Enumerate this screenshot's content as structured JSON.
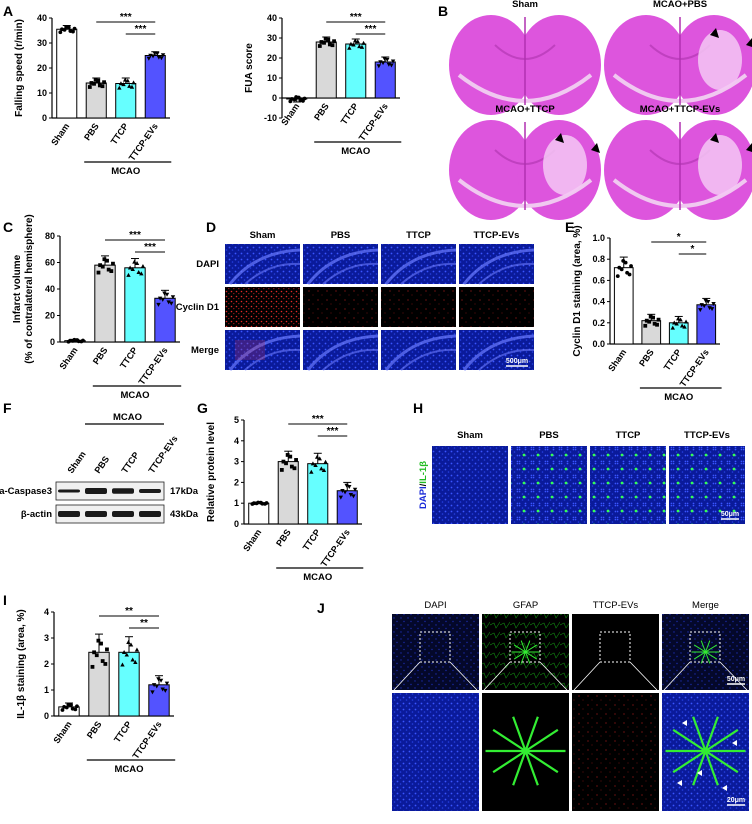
{
  "colors": {
    "sham": "#ffffff",
    "pbs": "#d9d9d9",
    "ttcp": "#66ffff",
    "ttcpev": "#5353ff",
    "stain": "#dd55dd",
    "dapi": "#2a3ad8",
    "green": "#22dd22",
    "red": "#cc2222"
  },
  "panels": {
    "A": {
      "label": "A",
      "chart1": {
        "ylabel": "Falling speed (r/min)",
        "yticks": [
          "0",
          "10",
          "20",
          "30",
          "40"
        ],
        "group": "MCAO"
      },
      "chart2": {
        "ylabel": "FUA score",
        "yticks": [
          "-10",
          "0",
          "10",
          "20",
          "30",
          "40"
        ],
        "group": "MCAO"
      }
    },
    "B": {
      "label": "B",
      "titles": [
        "Sham",
        "MCAO+PBS",
        "MCAO+TTCP",
        "MCAO+TTCP-EVs"
      ]
    },
    "C": {
      "label": "C",
      "ylabel": "Infarct volume",
      "ylabel2": "(% of contralateral hemisphere)",
      "yticks": [
        "0",
        "20",
        "40",
        "60",
        "80"
      ],
      "group": "MCAO"
    },
    "D": {
      "label": "D",
      "cols": [
        "Sham",
        "PBS",
        "TTCP",
        "TTCP-EVs"
      ],
      "rows": [
        "DAPI",
        "Cyclin D1",
        "Merge"
      ],
      "scale": "500μm"
    },
    "E": {
      "label": "E",
      "ylabel": "Cyclin D1 staining (area, %)",
      "yticks": [
        "0.0",
        "0.2",
        "0.4",
        "0.6",
        "0.8",
        "1.0"
      ],
      "group": "MCAO"
    },
    "F": {
      "label": "F",
      "group": "MCAO",
      "lanes": [
        "Sham",
        "PBS",
        "TTCP",
        "TTCP-EVs"
      ],
      "bands": [
        "a-Caspase3",
        "β-actin"
      ],
      "kda": [
        "17kDa",
        "43kDa"
      ]
    },
    "G": {
      "label": "G",
      "ylabel": "Relative protein level",
      "yticks": [
        "0",
        "1",
        "2",
        "3",
        "4",
        "5"
      ],
      "group": "MCAO"
    },
    "H": {
      "label": "H",
      "cols": [
        "Sham",
        "PBS",
        "TTCP",
        "TTCP-EVs"
      ],
      "side_dapi": "DAPI",
      "side_sep": "/",
      "side_il": "IL-1β",
      "scale": "50μm"
    },
    "I": {
      "label": "I",
      "ylabel": "IL-1β staining (area, %)",
      "yticks": [
        "0",
        "1",
        "2",
        "3",
        "4"
      ],
      "group": "MCAO"
    },
    "J": {
      "label": "J",
      "cols": [
        "DAPI",
        "GFAP",
        "TTCP-EVs",
        "Merge"
      ],
      "scale1": "50μm",
      "scale2": "20μm"
    }
  },
  "chart_data": [
    {
      "type": "bar",
      "panel": "A-left",
      "categories": [
        "Sham",
        "PBS",
        "TTCP",
        "TTCP-EVs"
      ],
      "values": [
        35.5,
        14,
        13.8,
        25
      ],
      "errors": [
        1.5,
        2,
        2.2,
        1.5
      ],
      "ylim": [
        0,
        40
      ],
      "ylabel": "Falling speed (r/min)",
      "group_label": "MCAO",
      "significance": [
        {
          "from": "PBS",
          "to": "TTCP-EVs",
          "label": "***"
        },
        {
          "from": "TTCP",
          "to": "TTCP-EVs",
          "label": "***"
        }
      ]
    },
    {
      "type": "bar",
      "panel": "A-right",
      "categories": [
        "Sham",
        "PBS",
        "TTCP",
        "TTCP-EVs"
      ],
      "values": [
        -0.5,
        28,
        27,
        18
      ],
      "errors": [
        1.5,
        2.5,
        2.5,
        2.5
      ],
      "ylim": [
        -10,
        40
      ],
      "ylabel": "FUA score",
      "group_label": "MCAO",
      "significance": [
        {
          "from": "PBS",
          "to": "TTCP-EVs",
          "label": "***"
        },
        {
          "from": "TTCP",
          "to": "TTCP-EVs",
          "label": "***"
        }
      ]
    },
    {
      "type": "bar",
      "panel": "C",
      "categories": [
        "Sham",
        "PBS",
        "TTCP",
        "TTCP-EVs"
      ],
      "values": [
        1,
        58,
        56,
        33
      ],
      "errors": [
        1,
        7,
        7,
        6
      ],
      "ylim": [
        0,
        80
      ],
      "ylabel": "Infarct volume (% of contralateral hemisphere)",
      "group_label": "MCAO",
      "significance": [
        {
          "from": "PBS",
          "to": "TTCP-EVs",
          "label": "***"
        },
        {
          "from": "TTCP",
          "to": "TTCP-EVs",
          "label": "***"
        }
      ]
    },
    {
      "type": "bar",
      "panel": "E",
      "categories": [
        "Sham",
        "PBS",
        "TTCP",
        "TTCP-EVs"
      ],
      "values": [
        0.72,
        0.22,
        0.2,
        0.37
      ],
      "errors": [
        0.1,
        0.06,
        0.06,
        0.06
      ],
      "ylim": [
        0,
        1.0
      ],
      "ylabel": "Cyclin D1 staining (area, %)",
      "group_label": "MCAO",
      "significance": [
        {
          "from": "PBS",
          "to": "TTCP-EVs",
          "label": "*"
        },
        {
          "from": "TTCP",
          "to": "TTCP-EVs",
          "label": "*"
        }
      ]
    },
    {
      "type": "bar",
      "panel": "G",
      "categories": [
        "Sham",
        "PBS",
        "TTCP",
        "TTCP-EVs"
      ],
      "values": [
        1.0,
        3.0,
        2.9,
        1.6
      ],
      "errors": [
        0.05,
        0.5,
        0.5,
        0.4
      ],
      "ylim": [
        0,
        5
      ],
      "ylabel": "Relative protein level",
      "group_label": "MCAO",
      "significance": [
        {
          "from": "PBS",
          "to": "TTCP-EVs",
          "label": "***"
        },
        {
          "from": "TTCP",
          "to": "TTCP-EVs",
          "label": "***"
        }
      ]
    },
    {
      "type": "bar",
      "panel": "I",
      "categories": [
        "Sham",
        "PBS",
        "TTCP",
        "TTCP-EVs"
      ],
      "values": [
        0.35,
        2.45,
        2.45,
        1.2
      ],
      "errors": [
        0.15,
        0.7,
        0.6,
        0.35
      ],
      "ylim": [
        0,
        4
      ],
      "ylabel": "IL-1β staining (area, %)",
      "group_label": "MCAO",
      "significance": [
        {
          "from": "PBS",
          "to": "TTCP-EVs",
          "label": "**"
        },
        {
          "from": "TTCP",
          "to": "TTCP-EVs",
          "label": "**"
        }
      ]
    }
  ]
}
